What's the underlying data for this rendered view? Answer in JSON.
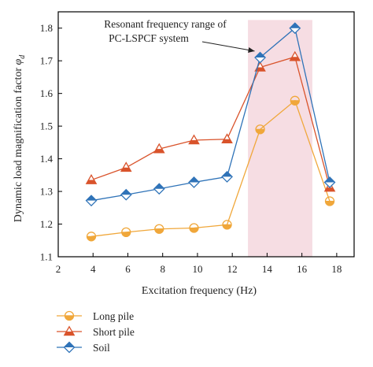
{
  "chart_data": {
    "type": "line",
    "xlabel": "Excitation frequency (Hz)",
    "ylabel_main": "Dynamic load magnification factor ",
    "ylabel_symbol": "φ",
    "ylabel_sub": "d",
    "xlim": [
      2,
      19
    ],
    "ylim": [
      1.1,
      1.85
    ],
    "xticks": [
      2,
      4,
      6,
      8,
      10,
      12,
      14,
      16,
      18
    ],
    "yticks": [
      1.1,
      1.2,
      1.3,
      1.4,
      1.5,
      1.6,
      1.7,
      1.8
    ],
    "shaded_region": {
      "x_from": 12.9,
      "x_to": 16.6,
      "color": "#f6dde3"
    },
    "annotation": {
      "line1": "Resonant frequency range of",
      "line2": "PC-LSPCF system",
      "arrow_to": {
        "x": 13.6,
        "y": 1.72
      }
    },
    "series": [
      {
        "name": "Long pile",
        "marker": "half-circle",
        "color": "#f0a73a",
        "x": [
          3.9,
          5.9,
          7.8,
          9.8,
          11.7,
          13.6,
          15.6,
          17.6
        ],
        "values": [
          1.162,
          1.175,
          1.185,
          1.188,
          1.198,
          1.49,
          1.578,
          1.27
        ]
      },
      {
        "name": "Short pile",
        "marker": "half-triangle",
        "color": "#d9532b",
        "x": [
          3.9,
          5.9,
          7.8,
          9.8,
          11.7,
          13.6,
          15.6,
          17.6
        ],
        "values": [
          1.335,
          1.373,
          1.43,
          1.457,
          1.46,
          1.68,
          1.712,
          1.312
        ]
      },
      {
        "name": "Soil",
        "marker": "half-diamond",
        "color": "#2f73b8",
        "x": [
          3.9,
          5.9,
          7.8,
          9.8,
          11.7,
          13.6,
          15.6,
          17.6
        ],
        "values": [
          1.272,
          1.29,
          1.308,
          1.328,
          1.345,
          1.71,
          1.8,
          1.328
        ]
      }
    ]
  }
}
